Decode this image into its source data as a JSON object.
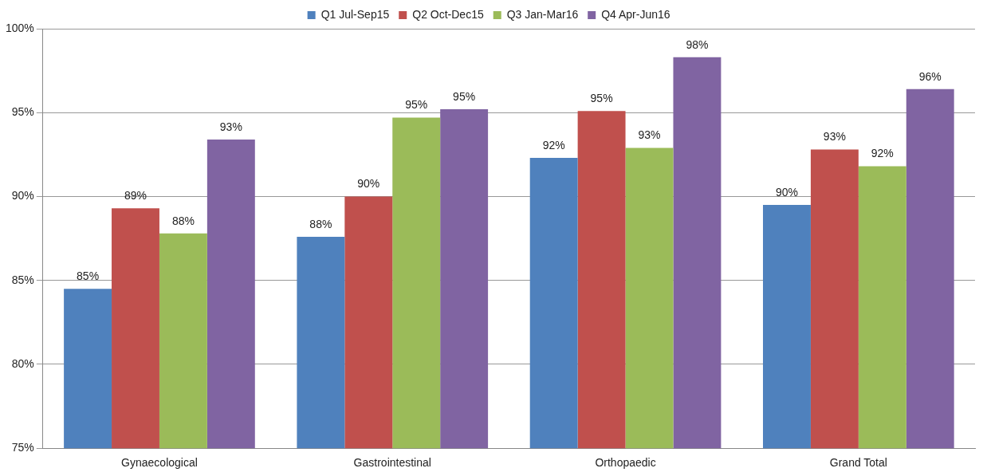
{
  "chart_data": {
    "type": "bar",
    "categories": [
      "Gynaecological",
      "Gastrointestinal",
      "Orthopaedic",
      "Grand Total"
    ],
    "series": [
      {
        "name": "Q1 Jul-Sep15",
        "color": "#4f81bd",
        "values": [
          84.5,
          87.6,
          92.3,
          89.5
        ],
        "value_labels": [
          "85%",
          "88%",
          "92%",
          "90%"
        ]
      },
      {
        "name": "Q2 Oct-Dec15",
        "color": "#c0504d",
        "values": [
          89.3,
          90.0,
          95.1,
          92.8
        ],
        "value_labels": [
          "89%",
          "90%",
          "95%",
          "93%"
        ]
      },
      {
        "name": "Q3 Jan-Mar16",
        "color": "#9bbb59",
        "values": [
          87.8,
          94.7,
          92.9,
          91.8
        ],
        "value_labels": [
          "88%",
          "95%",
          "93%",
          "92%"
        ]
      },
      {
        "name": "Q4 Apr-Jun16",
        "color": "#8064a2",
        "values": [
          93.4,
          95.2,
          98.3,
          96.4
        ],
        "value_labels": [
          "93%",
          "95%",
          "98%",
          "96%"
        ]
      }
    ],
    "ylim": [
      75,
      100
    ],
    "yticks": [
      {
        "value": 75,
        "label": "75%"
      },
      {
        "value": 80,
        "label": "80%"
      },
      {
        "value": 85,
        "label": "85%"
      },
      {
        "value": 90,
        "label": "90%"
      },
      {
        "value": 95,
        "label": "95%"
      },
      {
        "value": 100,
        "label": "100%"
      }
    ],
    "grid": "y",
    "legend": "top"
  }
}
